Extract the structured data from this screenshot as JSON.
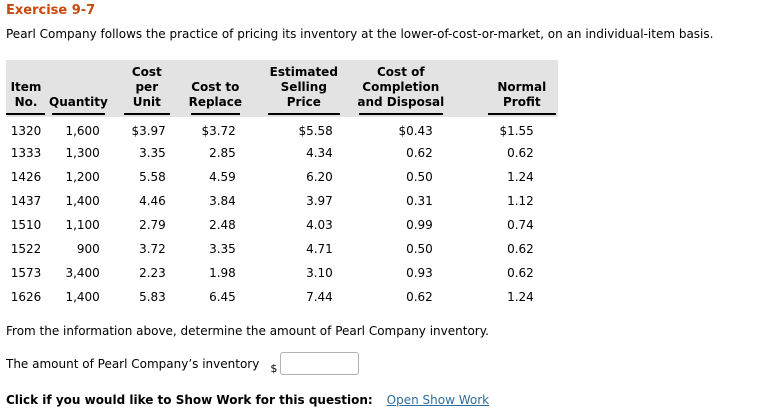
{
  "title": "Exercise 9-7",
  "intro": "Pearl Company follows the practice of pricing its inventory at the lower-of-cost-or-market, on an individual-item basis.",
  "table": {
    "columns": [
      {
        "label": "Item\nNo."
      },
      {
        "label": "Quantity"
      },
      {
        "label": "Cost per\nUnit"
      },
      {
        "label": "Cost to\nReplace"
      },
      {
        "label": "Estimated\nSelling\nPrice"
      },
      {
        "label": "Cost of\nCompletion\nand Disposal"
      },
      {
        "label": "Normal\nProfit"
      }
    ],
    "rows": [
      [
        "1320",
        "1,600",
        "$3.97",
        "$3.72",
        "$5.58",
        "$0.43",
        "$1.55"
      ],
      [
        "1333",
        "1,300",
        "3.35",
        "2.85",
        "4.34",
        "0.62",
        "0.62"
      ],
      [
        "1426",
        "1,200",
        "5.58",
        "4.59",
        "6.20",
        "0.50",
        "1.24"
      ],
      [
        "1437",
        "1,400",
        "4.46",
        "3.84",
        "3.97",
        "0.31",
        "1.12"
      ],
      [
        "1510",
        "1,100",
        "2.79",
        "2.48",
        "4.03",
        "0.99",
        "0.74"
      ],
      [
        "1522",
        "900",
        "3.72",
        "3.35",
        "4.71",
        "0.50",
        "0.62"
      ],
      [
        "1573",
        "3,400",
        "2.23",
        "1.98",
        "3.10",
        "0.93",
        "0.62"
      ],
      [
        "1626",
        "1,400",
        "5.83",
        "6.45",
        "7.44",
        "0.62",
        "1.24"
      ]
    ]
  },
  "question": "From the information above, determine the amount of Pearl Company inventory.",
  "answer": {
    "label": "The amount of Pearl Company’s inventory",
    "currency_symbol": "$",
    "input_value": "",
    "input_placeholder": ""
  },
  "show_work": {
    "prompt": "Click if you would like to Show Work for this question:",
    "link_label": "Open Show Work"
  },
  "colors": {
    "title": "#c8490f",
    "header_bg": "#e3e3e3",
    "link": "#2e6e9e",
    "input_border": "#b3b3b3"
  }
}
